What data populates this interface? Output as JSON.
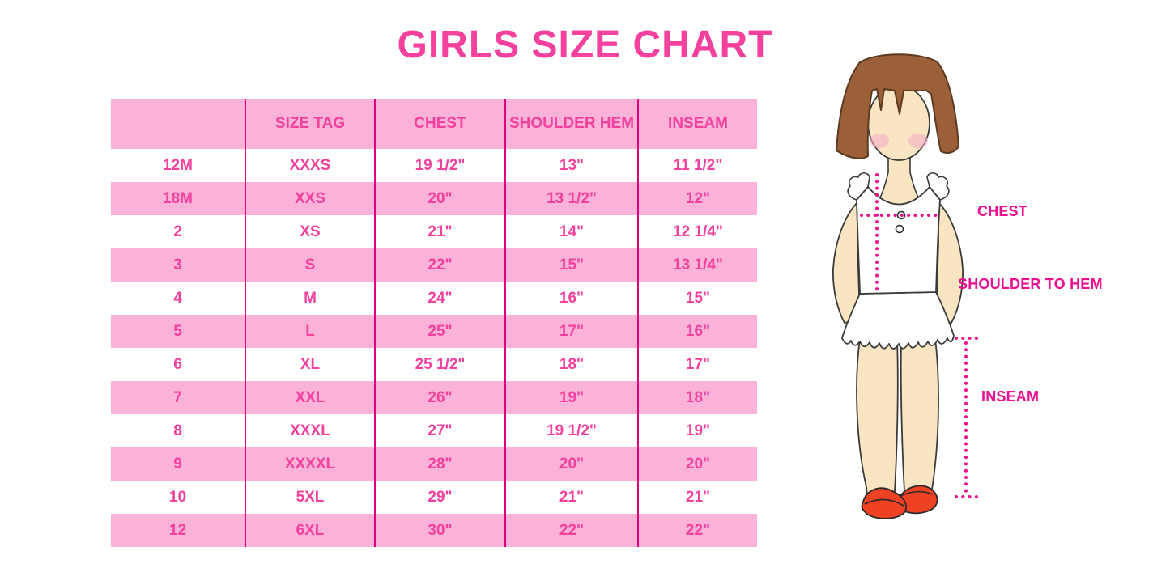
{
  "title": "GIRLS SIZE CHART",
  "colors": {
    "title_pink": "#F4419E",
    "row_pink": "#FAB2D8",
    "divider_magenta": "#E0017C",
    "table_text_pink": "#F4419E",
    "label_magenta": "#EC0E8E",
    "hair_brown": "#9C6039",
    "skin": "#FAE5C2",
    "shoe_red": "#EF4123"
  },
  "table": {
    "headers": [
      "",
      "SIZE TAG",
      "CHEST",
      "SHOULDER HEM",
      "INSEAM"
    ],
    "rows": [
      [
        "12M",
        "XXXS",
        "19 1/2\"",
        "13\"",
        "11 1/2\""
      ],
      [
        "18M",
        "XXS",
        "20\"",
        "13 1/2\"",
        "12\""
      ],
      [
        "2",
        "XS",
        "21\"",
        "14\"",
        "12 1/4\""
      ],
      [
        "3",
        "S",
        "22\"",
        "15\"",
        "13 1/4\""
      ],
      [
        "4",
        "M",
        "24\"",
        "16\"",
        "15\""
      ],
      [
        "5",
        "L",
        "25\"",
        "17\"",
        "16\""
      ],
      [
        "6",
        "XL",
        "25 1/2\"",
        "18\"",
        "17\""
      ],
      [
        "7",
        "XXL",
        "26\"",
        "19\"",
        "18\""
      ],
      [
        "8",
        "XXXL",
        "27\"",
        "19 1/2\"",
        "19\""
      ],
      [
        "9",
        "XXXXL",
        "28\"",
        "20\"",
        "20\""
      ],
      [
        "10",
        "5XL",
        "29\"",
        "21\"",
        "21\""
      ],
      [
        "12",
        "6XL",
        "30\"",
        "22\"",
        "22\""
      ]
    ]
  },
  "diagram": {
    "labels": {
      "chest": "CHEST",
      "shoulder_to_hem": "SHOULDER TO HEM",
      "inseam": "INSEAM"
    }
  }
}
